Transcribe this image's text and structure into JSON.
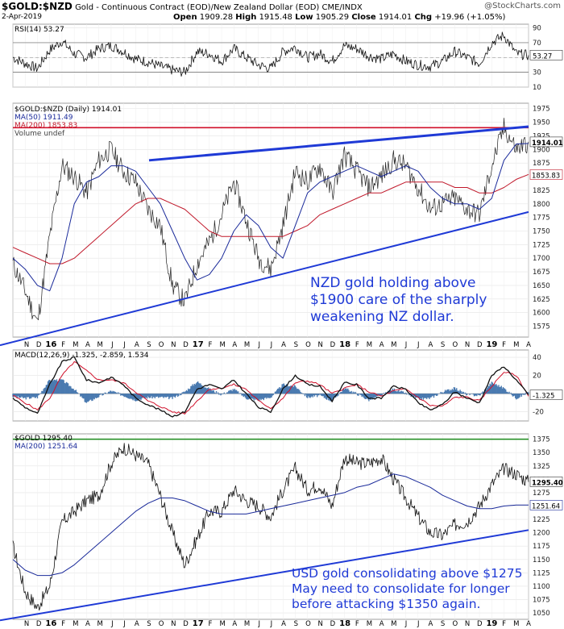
{
  "header": {
    "symbol": "$GOLD:$NZD",
    "description": "Gold - Continuous Contract (EOD)/New Zealand Dollar (EOD) CME/INDX",
    "date": "2-Apr-2019",
    "open_label": "Open",
    "open": "1909.28",
    "high_label": "High",
    "high": "1915.48",
    "low_label": "Low",
    "low": "1905.29",
    "close_label": "Close",
    "close": "1914.01",
    "chg_label": "Chg",
    "chg": "+19.96 (+1.05%)",
    "watermark": "@StockCharts.com"
  },
  "colors": {
    "blue_line": "#1f3ad6",
    "red_line": "#d0102a",
    "ma50": "#1a2a9a",
    "ma200": "#c0182a",
    "green": "#1a8a1a",
    "annotation": "#1f3ad6",
    "price": "#222222",
    "macd_hist": "#4a7ab0"
  },
  "chart_data": [
    {
      "type": "line",
      "panel": "RSI",
      "title": "RSI(14) 53.27",
      "yticks": [
        10,
        30,
        50,
        70,
        90
      ],
      "ylim": [
        10,
        95
      ],
      "last_label": "53.27",
      "x": [
        "2015-10",
        "2015-11",
        "2015-12",
        "2016-01",
        "2016-02",
        "2016-03",
        "2016-04",
        "2016-05",
        "2016-06",
        "2016-07",
        "2016-08",
        "2016-09",
        "2016-10",
        "2016-11",
        "2016-12",
        "2017-01",
        "2017-02",
        "2017-03",
        "2017-04",
        "2017-05",
        "2017-06",
        "2017-07",
        "2017-08",
        "2017-09",
        "2017-10",
        "2017-11",
        "2017-12",
        "2018-01",
        "2018-02",
        "2018-03",
        "2018-04",
        "2018-05",
        "2018-06",
        "2018-07",
        "2018-08",
        "2018-09",
        "2018-10",
        "2018-11",
        "2018-12",
        "2019-01",
        "2019-02",
        "2019-03",
        "2019-04"
      ],
      "values": [
        50,
        42,
        35,
        60,
        72,
        55,
        50,
        62,
        66,
        58,
        48,
        44,
        38,
        33,
        30,
        58,
        55,
        45,
        62,
        50,
        40,
        35,
        58,
        64,
        50,
        55,
        45,
        66,
        62,
        52,
        48,
        55,
        45,
        40,
        38,
        45,
        58,
        50,
        42,
        70,
        80,
        55,
        53
      ]
    },
    {
      "type": "line",
      "panel": "NZD gold price",
      "legend": [
        "$GOLD:$NZD (Daily) 1914.01",
        "MA(50) 1911.49",
        "MA(200) 1853.83",
        "Volume undef"
      ],
      "yticks": [
        1575,
        1600,
        1625,
        1650,
        1675,
        1700,
        1725,
        1750,
        1775,
        1800,
        1825,
        1850,
        1875,
        1900,
        1925,
        1950,
        1975
      ],
      "ylim": [
        1555,
        1985
      ],
      "last_labels": [
        "1914.01",
        "1853.83"
      ],
      "x": [
        "2015-10",
        "2015-11",
        "2015-12",
        "2016-01",
        "2016-02",
        "2016-03",
        "2016-04",
        "2016-05",
        "2016-06",
        "2016-07",
        "2016-08",
        "2016-09",
        "2016-10",
        "2016-11",
        "2016-12",
        "2017-01",
        "2017-02",
        "2017-03",
        "2017-04",
        "2017-05",
        "2017-06",
        "2017-07",
        "2017-08",
        "2017-09",
        "2017-10",
        "2017-11",
        "2017-12",
        "2018-01",
        "2018-02",
        "2018-03",
        "2018-04",
        "2018-05",
        "2018-06",
        "2018-07",
        "2018-08",
        "2018-09",
        "2018-10",
        "2018-11",
        "2018-12",
        "2019-01",
        "2019-02",
        "2019-03",
        "2019-04"
      ],
      "series": [
        {
          "name": "$GOLD:$NZD",
          "values": [
            1690,
            1640,
            1580,
            1740,
            1870,
            1850,
            1820,
            1880,
            1900,
            1860,
            1840,
            1790,
            1760,
            1650,
            1620,
            1690,
            1730,
            1780,
            1840,
            1770,
            1700,
            1680,
            1760,
            1860,
            1840,
            1870,
            1820,
            1890,
            1860,
            1830,
            1850,
            1880,
            1870,
            1830,
            1790,
            1800,
            1810,
            1790,
            1780,
            1870,
            1940,
            1900,
            1914
          ]
        },
        {
          "name": "MA(50)",
          "values": [
            1700,
            1680,
            1650,
            1640,
            1700,
            1800,
            1840,
            1850,
            1870,
            1870,
            1860,
            1830,
            1800,
            1750,
            1700,
            1660,
            1670,
            1700,
            1750,
            1780,
            1760,
            1720,
            1700,
            1760,
            1820,
            1840,
            1850,
            1860,
            1870,
            1860,
            1850,
            1860,
            1870,
            1860,
            1830,
            1810,
            1800,
            1800,
            1790,
            1810,
            1880,
            1910,
            1911
          ]
        },
        {
          "name": "MA(200)",
          "values": [
            1720,
            1710,
            1700,
            1690,
            1690,
            1700,
            1720,
            1740,
            1760,
            1780,
            1800,
            1810,
            1810,
            1800,
            1790,
            1770,
            1750,
            1740,
            1740,
            1740,
            1740,
            1740,
            1740,
            1750,
            1760,
            1780,
            1790,
            1800,
            1810,
            1820,
            1820,
            1830,
            1840,
            1840,
            1840,
            1840,
            1830,
            1830,
            1820,
            1820,
            1830,
            1845,
            1854
          ]
        }
      ],
      "annotation": [
        "NZD gold holding above",
        "$1900 care of the sharply",
        "weakening NZ dollar."
      ]
    },
    {
      "type": "line",
      "panel": "MACD",
      "title": "MACD(12,26,9) -1.325, -2.859, 1.534",
      "yticks": [
        -20,
        0,
        20,
        40
      ],
      "ylim": [
        -30,
        48
      ],
      "last_label": "-1.325",
      "x": [
        "2015-10",
        "2015-11",
        "2015-12",
        "2016-01",
        "2016-02",
        "2016-03",
        "2016-04",
        "2016-05",
        "2016-06",
        "2016-07",
        "2016-08",
        "2016-09",
        "2016-10",
        "2016-11",
        "2016-12",
        "2017-01",
        "2017-02",
        "2017-03",
        "2017-04",
        "2017-05",
        "2017-06",
        "2017-07",
        "2017-08",
        "2017-09",
        "2017-10",
        "2017-11",
        "2017-12",
        "2018-01",
        "2018-02",
        "2018-03",
        "2018-04",
        "2018-05",
        "2018-06",
        "2018-07",
        "2018-08",
        "2018-09",
        "2018-10",
        "2018-11",
        "2018-12",
        "2019-01",
        "2019-02",
        "2019-03",
        "2019-04"
      ],
      "series": [
        {
          "name": "MACD",
          "values": [
            -5,
            -15,
            -22,
            10,
            35,
            40,
            15,
            12,
            18,
            10,
            -5,
            -12,
            -18,
            -25,
            -20,
            5,
            10,
            5,
            15,
            0,
            -15,
            -20,
            5,
            20,
            10,
            8,
            -8,
            12,
            10,
            -5,
            -5,
            8,
            5,
            -10,
            -18,
            -12,
            2,
            -5,
            -10,
            20,
            30,
            15,
            -1.3
          ]
        },
        {
          "name": "Signal",
          "values": [
            -2,
            -10,
            -18,
            -5,
            20,
            35,
            25,
            15,
            15,
            12,
            2,
            -8,
            -14,
            -20,
            -22,
            -8,
            5,
            6,
            10,
            5,
            -8,
            -16,
            -5,
            12,
            14,
            10,
            0,
            6,
            10,
            2,
            -3,
            3,
            5,
            -4,
            -13,
            -14,
            -4,
            -4,
            -8,
            8,
            24,
            20,
            -2.9
          ]
        },
        {
          "name": "Histogram",
          "values": [
            -3,
            -5,
            -4,
            15,
            15,
            5,
            -10,
            -3,
            3,
            -2,
            -7,
            -4,
            -4,
            -5,
            2,
            13,
            5,
            -1,
            5,
            -5,
            -7,
            -4,
            10,
            8,
            -4,
            -2,
            -8,
            6,
            0,
            -7,
            -2,
            5,
            0,
            -6,
            -5,
            2,
            6,
            -1,
            -2,
            12,
            6,
            -5,
            1.5
          ]
        }
      ]
    },
    {
      "type": "line",
      "panel": "USD gold price",
      "legend": [
        "$GOLD 1295.40",
        "MA(200) 1251.64"
      ],
      "yticks": [
        1050,
        1075,
        1100,
        1125,
        1150,
        1175,
        1200,
        1225,
        1250,
        1275,
        1300,
        1325,
        1350,
        1375
      ],
      "ylim": [
        1038,
        1385
      ],
      "last_labels": [
        "1295.40",
        "1251.64"
      ],
      "x": [
        "2015-10",
        "2015-11",
        "2015-12",
        "2016-01",
        "2016-02",
        "2016-03",
        "2016-04",
        "2016-05",
        "2016-06",
        "2016-07",
        "2016-08",
        "2016-09",
        "2016-10",
        "2016-11",
        "2016-12",
        "2017-01",
        "2017-02",
        "2017-03",
        "2017-04",
        "2017-05",
        "2017-06",
        "2017-07",
        "2017-08",
        "2017-09",
        "2017-10",
        "2017-11",
        "2017-12",
        "2018-01",
        "2018-02",
        "2018-03",
        "2018-04",
        "2018-05",
        "2018-06",
        "2018-07",
        "2018-08",
        "2018-09",
        "2018-10",
        "2018-11",
        "2018-12",
        "2019-01",
        "2019-02",
        "2019-03",
        "2019-04"
      ],
      "series": [
        {
          "name": "$GOLD",
          "values": [
            1175,
            1090,
            1060,
            1100,
            1220,
            1240,
            1260,
            1270,
            1330,
            1360,
            1345,
            1330,
            1270,
            1200,
            1140,
            1190,
            1240,
            1240,
            1280,
            1260,
            1250,
            1230,
            1280,
            1320,
            1280,
            1290,
            1250,
            1340,
            1330,
            1330,
            1340,
            1300,
            1265,
            1230,
            1200,
            1195,
            1215,
            1220,
            1250,
            1290,
            1320,
            1310,
            1295
          ]
        },
        {
          "name": "MA(200)",
          "values": [
            1150,
            1130,
            1120,
            1120,
            1125,
            1140,
            1160,
            1180,
            1200,
            1220,
            1240,
            1255,
            1265,
            1265,
            1260,
            1250,
            1240,
            1235,
            1235,
            1235,
            1240,
            1245,
            1250,
            1255,
            1260,
            1265,
            1270,
            1275,
            1285,
            1290,
            1300,
            1310,
            1305,
            1295,
            1285,
            1270,
            1260,
            1250,
            1245,
            1245,
            1250,
            1252,
            1252
          ]
        }
      ],
      "annotation": [
        "USD gold consolidating above $1275",
        "May need to consolidate for longer",
        "before attacking $1350 again."
      ]
    }
  ],
  "x_axis": {
    "labels": [
      "N",
      "D",
      "16",
      "F",
      "M",
      "A",
      "M",
      "J",
      "J",
      "A",
      "S",
      "O",
      "N",
      "D",
      "17",
      "F",
      "M",
      "A",
      "M",
      "J",
      "J",
      "A",
      "S",
      "O",
      "N",
      "D",
      "18",
      "F",
      "M",
      "A",
      "M",
      "J",
      "J",
      "A",
      "S",
      "O",
      "N",
      "D",
      "19",
      "F",
      "M",
      "A"
    ],
    "bold": [
      "16",
      "17",
      "18",
      "19"
    ]
  }
}
